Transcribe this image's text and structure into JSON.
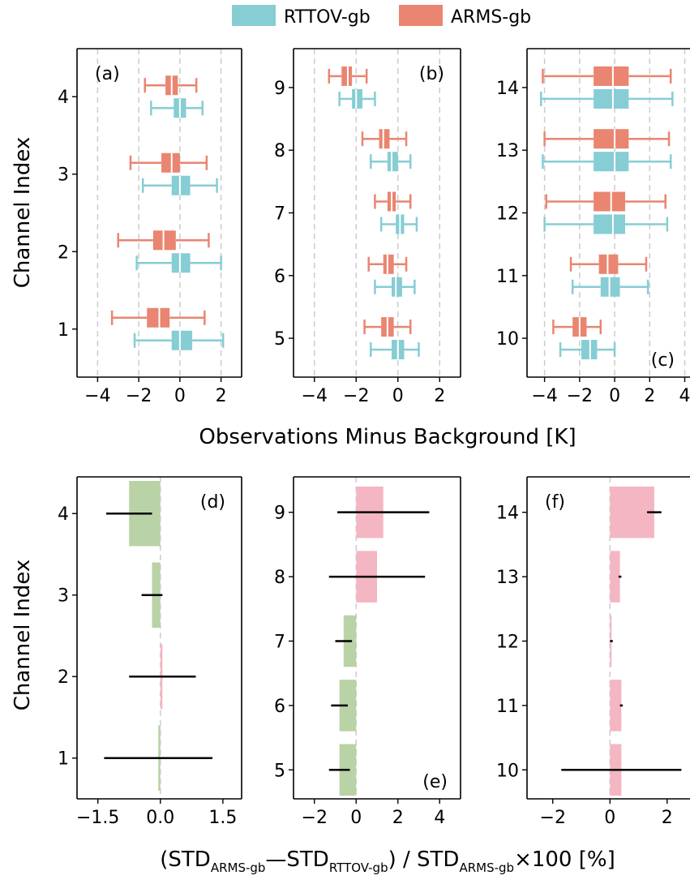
{
  "legend": {
    "items": [
      {
        "label": "RTTOV-gb",
        "color": "#86cdd4"
      },
      {
        "label": "ARMS-gb",
        "color": "#e98570"
      }
    ]
  },
  "labels": {
    "top_ylabel": "Channel Index",
    "top_xlabel": "Observations Minus Background [K]",
    "bottom_ylabel": "Channel Index",
    "bottom_xlabel": {
      "open": "(STD",
      "sub1": "ARMS-gb",
      "dash": "—STD",
      "sub2": "RTTOV-gb",
      "mid": ") / STD",
      "sub3": "ARMS-gb",
      "tail": "×100 [%]"
    }
  },
  "colors": {
    "rttov": "#86cdd4",
    "arms": "#e98570",
    "positive": "#f4b6c2",
    "negative": "#b9d2a6",
    "gridline": "#cccccc"
  },
  "chart_data": [
    {
      "panel": "(a)",
      "type": "box",
      "orientation": "horizontal",
      "channels": [
        1,
        2,
        3,
        4
      ],
      "xlim": [
        -5,
        3
      ],
      "xticks": [
        -4,
        -2,
        0,
        2
      ],
      "grid": "vertical dashed",
      "series": [
        {
          "name": "RTTOV-gb",
          "boxes": [
            {
              "channel": 1,
              "whislo": -2.2,
              "q1": -0.4,
              "med": 0.0,
              "q3": 0.6,
              "whishi": 2.1
            },
            {
              "channel": 2,
              "whislo": -2.1,
              "q1": -0.4,
              "med": 0.0,
              "q3": 0.5,
              "whishi": 2.0
            },
            {
              "channel": 3,
              "whislo": -1.8,
              "q1": -0.4,
              "med": 0.0,
              "q3": 0.5,
              "whishi": 1.8
            },
            {
              "channel": 4,
              "whislo": -1.4,
              "q1": -0.3,
              "med": 0.0,
              "q3": 0.3,
              "whishi": 1.1
            }
          ]
        },
        {
          "name": "ARMS-gb",
          "boxes": [
            {
              "channel": 1,
              "whislo": -3.3,
              "q1": -1.6,
              "med": -1.0,
              "q3": -0.5,
              "whishi": 1.2
            },
            {
              "channel": 2,
              "whislo": -3.0,
              "q1": -1.3,
              "med": -0.8,
              "q3": -0.2,
              "whishi": 1.4
            },
            {
              "channel": 3,
              "whislo": -2.4,
              "q1": -0.9,
              "med": -0.4,
              "q3": 0.0,
              "whishi": 1.3
            },
            {
              "channel": 4,
              "whislo": -1.7,
              "q1": -0.7,
              "med": -0.4,
              "q3": -0.1,
              "whishi": 0.8
            }
          ]
        }
      ]
    },
    {
      "panel": "(b)",
      "type": "box",
      "orientation": "horizontal",
      "channels": [
        5,
        6,
        7,
        8,
        9
      ],
      "xlim": [
        -5,
        3
      ],
      "xticks": [
        -4,
        -2,
        0,
        2
      ],
      "grid": "vertical dashed",
      "series": [
        {
          "name": "RTTOV-gb",
          "boxes": [
            {
              "channel": 5,
              "whislo": -1.3,
              "q1": -0.3,
              "med": 0.0,
              "q3": 0.3,
              "whishi": 1.0
            },
            {
              "channel": 6,
              "whislo": -1.1,
              "q1": -0.3,
              "med": -0.1,
              "q3": 0.2,
              "whishi": 0.8
            },
            {
              "channel": 7,
              "whislo": -0.8,
              "q1": -0.1,
              "med": 0.1,
              "q3": 0.3,
              "whishi": 0.9
            },
            {
              "channel": 8,
              "whislo": -1.3,
              "q1": -0.5,
              "med": -0.3,
              "q3": 0.0,
              "whishi": 0.6
            },
            {
              "channel": 9,
              "whislo": -2.8,
              "q1": -2.2,
              "med": -2.0,
              "q3": -1.7,
              "whishi": -1.1
            }
          ]
        },
        {
          "name": "ARMS-gb",
          "boxes": [
            {
              "channel": 5,
              "whislo": -1.6,
              "q1": -0.8,
              "med": -0.5,
              "q3": -0.2,
              "whishi": 0.6
            },
            {
              "channel": 6,
              "whislo": -1.4,
              "q1": -0.7,
              "med": -0.5,
              "q3": -0.2,
              "whishi": 0.4
            },
            {
              "channel": 7,
              "whislo": -1.1,
              "q1": -0.5,
              "med": -0.3,
              "q3": -0.1,
              "whishi": 0.6
            },
            {
              "channel": 8,
              "whislo": -1.7,
              "q1": -0.9,
              "med": -0.7,
              "q3": -0.4,
              "whishi": 0.4
            },
            {
              "channel": 9,
              "whislo": -3.3,
              "q1": -2.7,
              "med": -2.4,
              "q3": -2.2,
              "whishi": -1.5
            }
          ]
        }
      ]
    },
    {
      "panel": "(c)",
      "type": "box",
      "orientation": "horizontal",
      "channels": [
        10,
        11,
        12,
        13,
        14
      ],
      "xlim": [
        -5,
        4.3
      ],
      "xticks": [
        -4,
        -2,
        0,
        2,
        4
      ],
      "grid": "vertical dashed",
      "series": [
        {
          "name": "RTTOV-gb",
          "boxes": [
            {
              "channel": 10,
              "whislo": -3.1,
              "q1": -1.9,
              "med": -1.4,
              "q3": -1.0,
              "whishi": 0.0
            },
            {
              "channel": 11,
              "whislo": -2.4,
              "q1": -0.8,
              "med": -0.3,
              "q3": 0.3,
              "whishi": 1.9
            },
            {
              "channel": 12,
              "whislo": -4.0,
              "q1": -1.2,
              "med": -0.1,
              "q3": 0.6,
              "whishi": 3.0
            },
            {
              "channel": 13,
              "whislo": -4.1,
              "q1": -1.2,
              "med": 0.0,
              "q3": 0.8,
              "whishi": 3.2
            },
            {
              "channel": 14,
              "whislo": -4.2,
              "q1": -1.2,
              "med": -0.1,
              "q3": 0.8,
              "whishi": 3.3
            }
          ]
        },
        {
          "name": "ARMS-gb",
          "boxes": [
            {
              "channel": 10,
              "whislo": -3.5,
              "q1": -2.4,
              "med": -2.0,
              "q3": -1.6,
              "whishi": -0.8
            },
            {
              "channel": 11,
              "whislo": -2.5,
              "q1": -0.9,
              "med": -0.4,
              "q3": 0.2,
              "whishi": 1.8
            },
            {
              "channel": 12,
              "whislo": -3.9,
              "q1": -1.2,
              "med": -0.2,
              "q3": 0.6,
              "whishi": 2.9
            },
            {
              "channel": 13,
              "whislo": -4.0,
              "q1": -1.2,
              "med": 0.0,
              "q3": 0.8,
              "whishi": 3.1
            },
            {
              "channel": 14,
              "whislo": -4.1,
              "q1": -1.2,
              "med": -0.1,
              "q3": 0.8,
              "whishi": 3.2
            }
          ]
        }
      ]
    },
    {
      "panel": "(d)",
      "type": "bar",
      "orientation": "horizontal",
      "channels": [
        1,
        2,
        3,
        4
      ],
      "values": [
        -0.05,
        0.05,
        -0.2,
        -0.75
      ],
      "errors": [
        1.3,
        0.8,
        0.25,
        0.55
      ],
      "xlim": [
        -2.0,
        1.95
      ],
      "xticks": [
        -1.5,
        0.0,
        1.5
      ],
      "xtick_labels": [
        "−1.5",
        "0.0",
        "1.5"
      ]
    },
    {
      "panel": "(e)",
      "type": "bar",
      "orientation": "horizontal",
      "channels": [
        5,
        6,
        7,
        8,
        9
      ],
      "values": [
        -0.8,
        -0.8,
        -0.6,
        1.0,
        1.3
      ],
      "errors": [
        0.5,
        0.4,
        0.4,
        2.3,
        2.2
      ],
      "xlim": [
        -3,
        5
      ],
      "xticks": [
        -2,
        0,
        2,
        4
      ]
    },
    {
      "panel": "(f)",
      "type": "bar",
      "orientation": "horizontal",
      "channels": [
        10,
        11,
        12,
        13,
        14
      ],
      "values": [
        0.4,
        0.4,
        0.05,
        0.35,
        1.55
      ],
      "errors": [
        2.1,
        0.05,
        0.05,
        0.05,
        0.25
      ],
      "xlim": [
        -2.9,
        2.8
      ],
      "xticks": [
        -2,
        0,
        2
      ]
    }
  ]
}
